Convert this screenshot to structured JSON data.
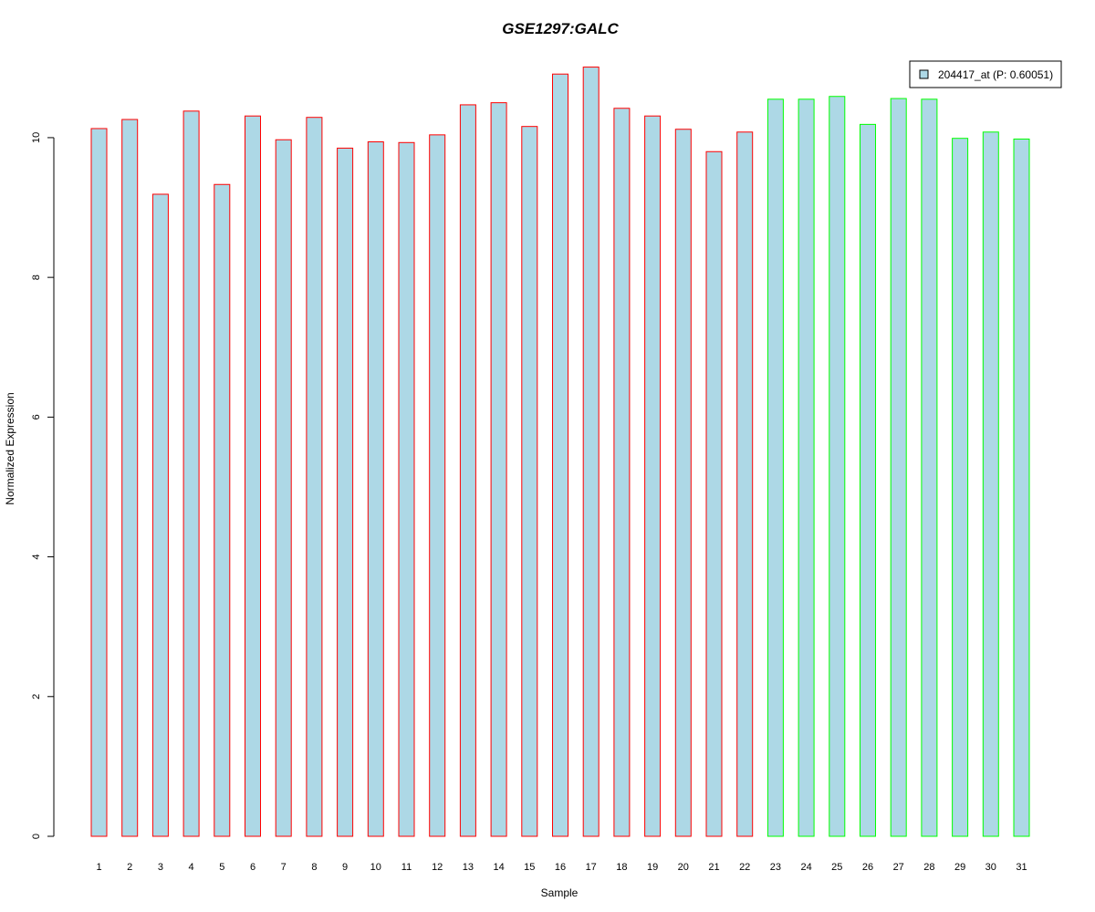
{
  "chart_data": {
    "type": "bar",
    "title": "GSE1297:GALC",
    "xlabel": "Sample",
    "ylabel": "Normalized Expression",
    "categories": [
      "1",
      "2",
      "3",
      "4",
      "5",
      "6",
      "7",
      "8",
      "9",
      "10",
      "11",
      "12",
      "13",
      "14",
      "15",
      "16",
      "17",
      "18",
      "19",
      "20",
      "21",
      "22",
      "23",
      "24",
      "25",
      "26",
      "27",
      "28",
      "29",
      "30",
      "31"
    ],
    "series": [
      {
        "name": "204417_at (P: 0.60051)",
        "values": [
          10.13,
          10.26,
          9.19,
          10.38,
          9.33,
          10.31,
          9.97,
          10.29,
          9.85,
          9.94,
          9.93,
          10.04,
          10.47,
          10.5,
          10.16,
          10.91,
          11.01,
          10.42,
          10.31,
          10.12,
          9.8,
          10.08,
          10.55,
          10.55,
          10.59,
          10.19,
          10.56,
          10.55,
          9.99,
          10.08,
          9.98
        ]
      }
    ],
    "groups": [
      {
        "samples": [
          1,
          22
        ],
        "outline_color": "#ff0000"
      },
      {
        "samples": [
          23,
          31
        ],
        "outline_color": "#00ff00"
      }
    ],
    "yticks": [
      0,
      2,
      4,
      6,
      8,
      10
    ],
    "ylim": [
      0,
      11.2
    ],
    "grid": false,
    "legend_position": "top-right",
    "colors": {
      "bar_fill": "#add8e6",
      "title": "#0000cc",
      "axis": "#000000"
    }
  }
}
